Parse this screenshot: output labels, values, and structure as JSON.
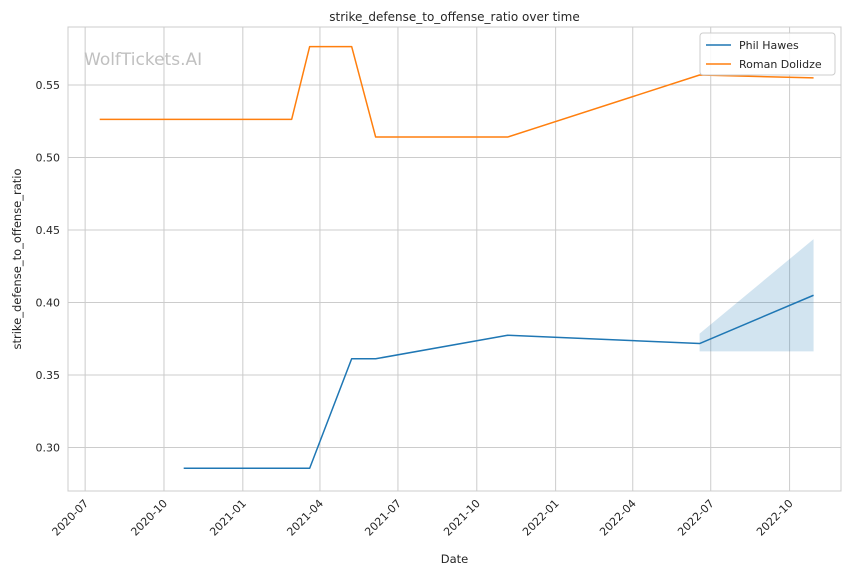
{
  "chart_data": {
    "type": "line",
    "title": "strike_defense_to_offense_ratio over time",
    "xlabel": "Date",
    "ylabel": "strike_defense_to_offense_ratio",
    "watermark": "WolfTickets.AI",
    "x_ticks": [
      "2020-07",
      "2020-10",
      "2021-01",
      "2021-04",
      "2021-07",
      "2021-10",
      "2022-01",
      "2022-04",
      "2022-07",
      "2022-10"
    ],
    "y_ticks": [
      "0.30",
      "0.35",
      "0.40",
      "0.45",
      "0.50",
      "0.55"
    ],
    "xlim": [
      "2020-06-11",
      "2022-11-30"
    ],
    "ylim": [
      0.27,
      0.59
    ],
    "grid": true,
    "legend_position": "top-right",
    "series": [
      {
        "name": "Phil Hawes",
        "color": "#1f77b4",
        "points": [
          {
            "x": "2020-10-24",
            "y": 0.2857
          },
          {
            "x": "2021-03-20",
            "y": 0.2857
          },
          {
            "x": "2021-05-08",
            "y": 0.3612
          },
          {
            "x": "2021-06-05",
            "y": 0.3612
          },
          {
            "x": "2021-11-06",
            "y": 0.3774
          },
          {
            "x": "2022-06-18",
            "y": 0.3717
          },
          {
            "x": "2022-10-29",
            "y": 0.405
          }
        ],
        "band": [
          {
            "x": "2022-06-18",
            "lower": 0.3663,
            "upper": 0.3785
          },
          {
            "x": "2022-10-29",
            "lower": 0.3663,
            "upper": 0.4437
          }
        ]
      },
      {
        "name": "Roman Dolidze",
        "color": "#ff7f0e",
        "points": [
          {
            "x": "2020-07-18",
            "y": 0.5263
          },
          {
            "x": "2021-02-27",
            "y": 0.5263
          },
          {
            "x": "2021-03-20",
            "y": 0.5765
          },
          {
            "x": "2021-05-08",
            "y": 0.5765
          },
          {
            "x": "2021-06-05",
            "y": 0.5141
          },
          {
            "x": "2021-11-06",
            "y": 0.5141
          },
          {
            "x": "2022-06-18",
            "y": 0.5569
          },
          {
            "x": "2022-10-29",
            "y": 0.5549
          }
        ]
      }
    ]
  }
}
